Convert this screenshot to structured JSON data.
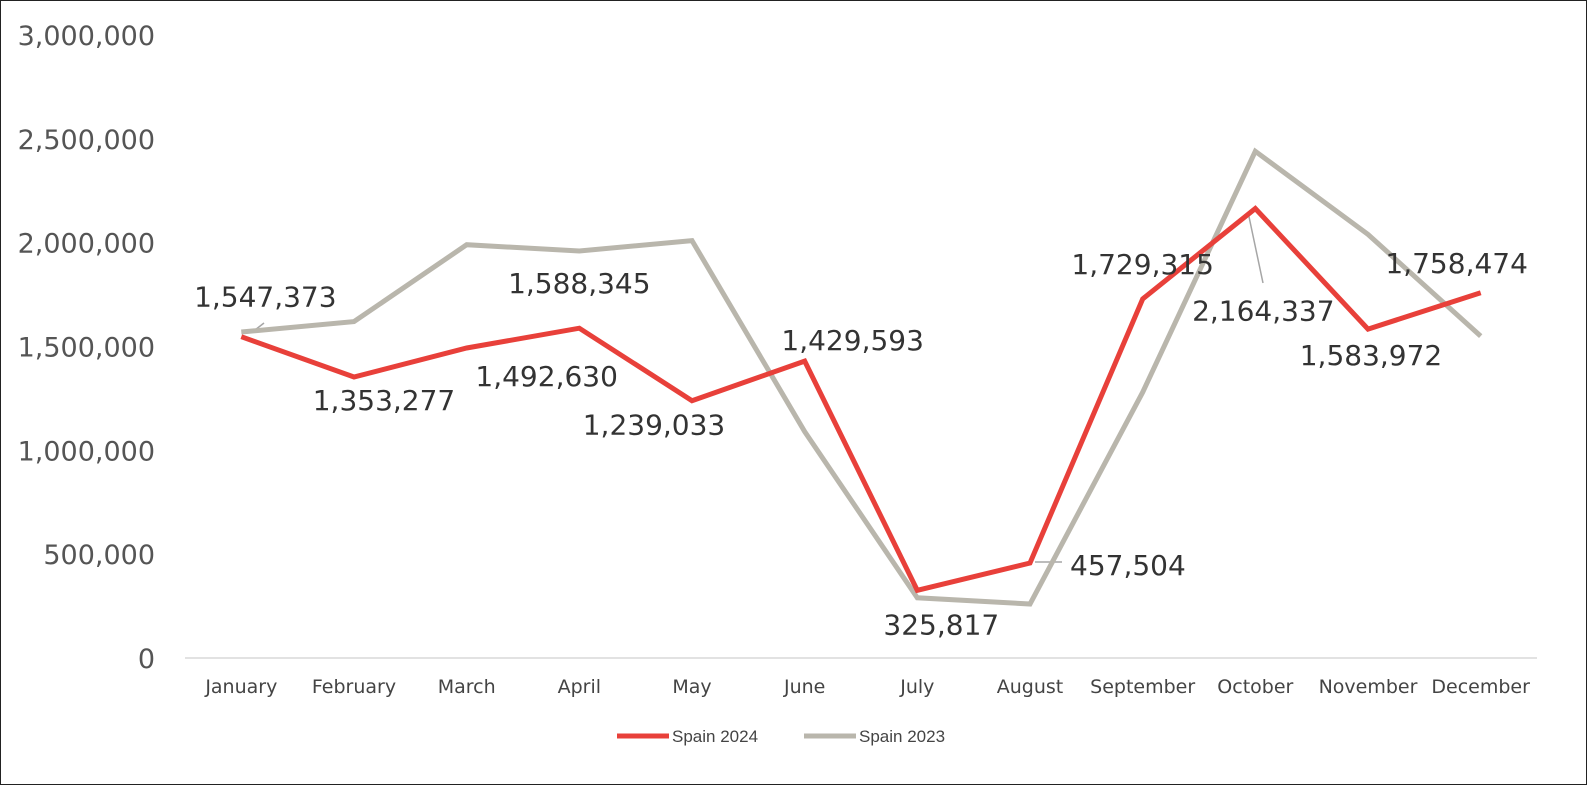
{
  "chart_data": {
    "type": "line",
    "categories": [
      "January",
      "February",
      "March",
      "April",
      "May",
      "June",
      "July",
      "August",
      "September",
      "October",
      "November",
      "December"
    ],
    "ylim": [
      0,
      3000000
    ],
    "yticks": [
      0,
      500000,
      1000000,
      1500000,
      2000000,
      2500000,
      3000000
    ],
    "ytick_labels": [
      "0",
      "500,000",
      "1,000,000",
      "1,500,000",
      "2,000,000",
      "2,500,000",
      "3,000,000"
    ],
    "grid": "baseline only",
    "legend": "bottom-center",
    "series": [
      {
        "name": "Spain 2024",
        "color": "#e8403a",
        "values": [
          1547373,
          1353277,
          1492630,
          1588345,
          1239033,
          1429593,
          325817,
          457504,
          1729315,
          2164337,
          1583972,
          1758474
        ]
      },
      {
        "name": "Spain 2023",
        "color": "#b9b6ac",
        "values": [
          1570000,
          1620000,
          1990000,
          1960000,
          2010000,
          1090000,
          290000,
          260000,
          1280000,
          2440000,
          2040000,
          1550000
        ]
      }
    ],
    "data_labels": [
      {
        "month": 0,
        "text": "1,547,373"
      },
      {
        "month": 1,
        "text": "1,353,277"
      },
      {
        "month": 2,
        "text": "1,492,630"
      },
      {
        "month": 3,
        "text": "1,588,345"
      },
      {
        "month": 4,
        "text": "1,239,033"
      },
      {
        "month": 5,
        "text": "1,429,593"
      },
      {
        "month": 6,
        "text": "325,817"
      },
      {
        "month": 7,
        "text": "457,504"
      },
      {
        "month": 8,
        "text": "1,729,315"
      },
      {
        "month": 9,
        "text": "2,164,337"
      },
      {
        "month": 10,
        "text": "1,583,972"
      },
      {
        "month": 11,
        "text": "1,758,474"
      }
    ]
  }
}
